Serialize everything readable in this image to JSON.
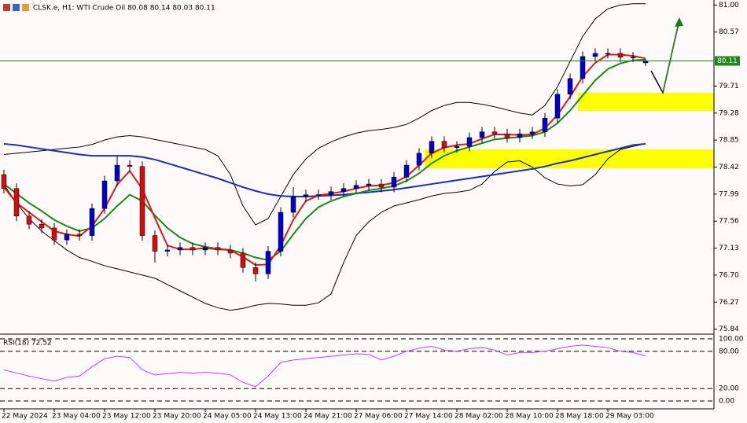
{
  "chart_data": {
    "type": "candlestick",
    "title": "CLSK.e, H1:  WTI Crude Oil  80.08 80.14 80.03 80.11",
    "categories": [
      "22 May 2024",
      null,
      null,
      null,
      "23 May 04:00",
      null,
      null,
      null,
      "23 May 12:00",
      null,
      null,
      null,
      "23 May 20:00",
      null,
      null,
      null,
      "24 May 05:00",
      null,
      null,
      null,
      "24 May 13:00",
      null,
      null,
      null,
      "24 May 21:00",
      null,
      null,
      null,
      "27 May 06:00",
      null,
      null,
      null,
      "27 May 14:00",
      null,
      null,
      null,
      "28 May 02:00",
      null,
      null,
      null,
      "28 May 10:00",
      null,
      null,
      null,
      "28 May 18:00",
      null,
      null,
      null,
      "29 May 03:00",
      null,
      null,
      null
    ],
    "open": [
      78.3,
      78.08,
      77.64,
      77.51,
      77.45,
      77.26,
      77.35,
      77.33,
      77.76,
      78.2,
      78.45,
      78.43,
      77.33,
      77.08,
      77.1,
      77.14,
      77.1,
      77.14,
      77.1,
      77.05,
      76.82,
      76.72,
      77.08,
      77.7,
      77.95,
      77.98,
      77.98,
      78.03,
      78.08,
      78.13,
      78.15,
      78.1,
      78.26,
      78.45,
      78.64,
      78.83,
      78.73,
      78.75,
      78.89,
      78.98,
      78.95,
      78.89,
      78.95,
      78.98,
      79.2,
      79.58,
      79.83,
      80.18,
      80.23,
      80.23,
      80.17,
      80.08
    ],
    "high": [
      78.38,
      78.16,
      77.72,
      77.59,
      77.53,
      77.43,
      77.43,
      77.84,
      78.28,
      78.6,
      78.53,
      78.51,
      77.41,
      77.18,
      77.22,
      77.22,
      77.22,
      77.22,
      77.18,
      77.13,
      76.9,
      77.16,
      77.78,
      78.1,
      78.06,
      78.06,
      78.11,
      78.16,
      78.21,
      78.23,
      78.23,
      78.34,
      78.53,
      78.72,
      78.91,
      78.91,
      78.83,
      78.97,
      79.06,
      79.06,
      79.03,
      79.03,
      79.06,
      79.28,
      79.66,
      79.91,
      80.26,
      80.31,
      80.31,
      80.31,
      80.25,
      80.14
    ],
    "low": [
      78.0,
      77.56,
      77.43,
      77.37,
      77.18,
      77.18,
      77.25,
      77.25,
      77.68,
      78.12,
      78.35,
      77.25,
      76.9,
      77.0,
      77.02,
      77.02,
      77.02,
      77.02,
      76.97,
      76.74,
      76.6,
      76.64,
      77.0,
      77.62,
      77.87,
      77.9,
      77.9,
      77.95,
      78.0,
      78.05,
      78.02,
      78.02,
      78.18,
      78.37,
      78.56,
      78.65,
      78.65,
      78.67,
      78.81,
      78.87,
      78.81,
      78.81,
      78.87,
      78.9,
      79.12,
      79.5,
      79.75,
      80.1,
      80.15,
      80.09,
      80.09,
      80.03
    ],
    "close": [
      78.08,
      77.64,
      77.51,
      77.45,
      77.26,
      77.35,
      77.33,
      77.76,
      78.2,
      78.45,
      78.43,
      77.33,
      77.08,
      77.1,
      77.14,
      77.1,
      77.14,
      77.1,
      77.05,
      76.82,
      76.72,
      77.08,
      77.7,
      77.95,
      77.98,
      77.98,
      78.03,
      78.08,
      78.13,
      78.15,
      78.1,
      78.26,
      78.45,
      78.64,
      78.83,
      78.73,
      78.75,
      78.89,
      78.98,
      78.95,
      78.89,
      78.95,
      78.98,
      79.2,
      79.58,
      79.83,
      80.18,
      80.23,
      80.23,
      80.17,
      80.17,
      80.11
    ],
    "up_color": "#0000c8",
    "down_color": "#d01010",
    "series": [
      {
        "color": "#000000",
        "values": [
          78.62,
          78.64,
          78.66,
          78.68,
          78.7,
          78.72,
          78.74,
          78.78,
          78.85,
          78.9,
          78.92,
          78.9,
          78.86,
          78.82,
          78.78,
          78.74,
          78.7,
          78.6,
          78.3,
          77.8,
          77.5,
          77.6,
          77.95,
          78.3,
          78.55,
          78.72,
          78.82,
          78.9,
          78.96,
          79.0,
          79.02,
          79.05,
          79.1,
          79.2,
          79.32,
          79.4,
          79.45,
          79.45,
          79.42,
          79.38,
          79.33,
          79.28,
          79.25,
          79.4,
          79.7,
          80.1,
          80.5,
          80.78,
          80.94,
          81.0,
          81.02,
          81.02
        ]
      },
      {
        "color": "#000000",
        "values": [
          78.14,
          77.85,
          77.6,
          77.4,
          77.25,
          77.1,
          76.98,
          76.92,
          76.85,
          76.8,
          76.75,
          76.7,
          76.65,
          76.55,
          76.45,
          76.35,
          76.25,
          76.18,
          76.14,
          76.17,
          76.22,
          76.25,
          76.24,
          76.22,
          76.22,
          76.26,
          76.4,
          76.9,
          77.33,
          77.55,
          77.7,
          77.8,
          77.85,
          77.9,
          77.96,
          78.0,
          78.02,
          78.05,
          78.15,
          78.35,
          78.5,
          78.52,
          78.42,
          78.25,
          78.15,
          78.12,
          78.14,
          78.3,
          78.55,
          78.7,
          78.75,
          78.79
        ]
      },
      {
        "color": "#1a2fbf",
        "values": [
          78.79,
          78.77,
          78.74,
          78.71,
          78.68,
          78.65,
          78.62,
          78.6,
          78.6,
          78.6,
          78.6,
          78.58,
          78.54,
          78.48,
          78.42,
          78.36,
          78.3,
          78.24,
          78.17,
          78.1,
          78.04,
          77.99,
          77.96,
          77.95,
          77.95,
          77.96,
          77.97,
          77.98,
          78.0,
          78.02,
          78.04,
          78.06,
          78.09,
          78.12,
          78.15,
          78.18,
          78.21,
          78.24,
          78.27,
          78.3,
          78.33,
          78.36,
          78.39,
          78.43,
          78.48,
          78.52,
          78.57,
          78.62,
          78.67,
          78.72,
          78.77,
          78.79
        ]
      },
      {
        "color": "#178a17",
        "values": [
          78.15,
          78.0,
          77.85,
          77.72,
          77.58,
          77.48,
          77.4,
          77.45,
          77.6,
          77.8,
          77.98,
          77.88,
          77.65,
          77.45,
          77.3,
          77.2,
          77.15,
          77.12,
          77.1,
          77.05,
          76.98,
          76.94,
          77.08,
          77.35,
          77.6,
          77.78,
          77.88,
          77.95,
          78.0,
          78.05,
          78.08,
          78.12,
          78.2,
          78.32,
          78.48,
          78.6,
          78.68,
          78.74,
          78.8,
          78.86,
          78.88,
          78.9,
          78.92,
          78.98,
          79.12,
          79.32,
          79.56,
          79.8,
          79.98,
          80.07,
          80.12,
          80.13
        ]
      },
      {
        "color": "#e01818",
        "values": [
          78.1,
          77.85,
          77.7,
          77.55,
          77.4,
          77.35,
          77.32,
          77.48,
          77.76,
          78.14,
          78.36,
          78.07,
          77.61,
          77.17,
          77.11,
          77.11,
          77.13,
          77.11,
          77.1,
          76.99,
          76.86,
          76.87,
          77.17,
          77.58,
          77.88,
          77.97,
          78.0,
          78.03,
          78.08,
          78.12,
          78.13,
          78.17,
          78.27,
          78.45,
          78.64,
          78.73,
          78.77,
          78.79,
          78.87,
          78.94,
          78.94,
          78.93,
          78.94,
          79.04,
          79.25,
          79.54,
          79.86,
          80.08,
          80.21,
          80.21,
          80.19,
          80.15
        ]
      }
    ],
    "ylim": [
      75.76,
      81.08
    ],
    "yticks": [
      {
        "value": 81,
        "label": "81.00"
      },
      80.57,
      79.71,
      79.28,
      78.85,
      78.42,
      77.99,
      77.56,
      77.13,
      {
        "value": 76.7,
        "label": "76.70"
      },
      76.27,
      75.84
    ],
    "last_price": 80.11,
    "rsi": {
      "label": "RSI(18) 72.52",
      "color": "#cc44cc",
      "values": [
        50,
        45,
        40,
        36,
        32,
        38,
        40,
        55,
        68,
        72,
        70,
        50,
        42,
        44,
        46,
        45,
        46,
        45,
        42,
        30,
        23,
        40,
        62,
        66,
        68,
        70,
        72,
        74,
        76,
        75,
        66,
        72,
        80,
        85,
        88,
        82,
        80,
        84,
        86,
        82,
        74,
        78,
        78,
        80,
        84,
        88,
        90,
        88,
        86,
        80,
        78,
        72.52
      ],
      "ylim": [
        0,
        100
      ],
      "yticks": [
        {
          "value": 100,
          "label": "100.00"
        },
        {
          "value": 80,
          "label": "80.00"
        },
        {
          "value": 20,
          "label": "20.00"
        },
        {
          "value": 0,
          "label": "0.00"
        }
      ]
    }
  }
}
